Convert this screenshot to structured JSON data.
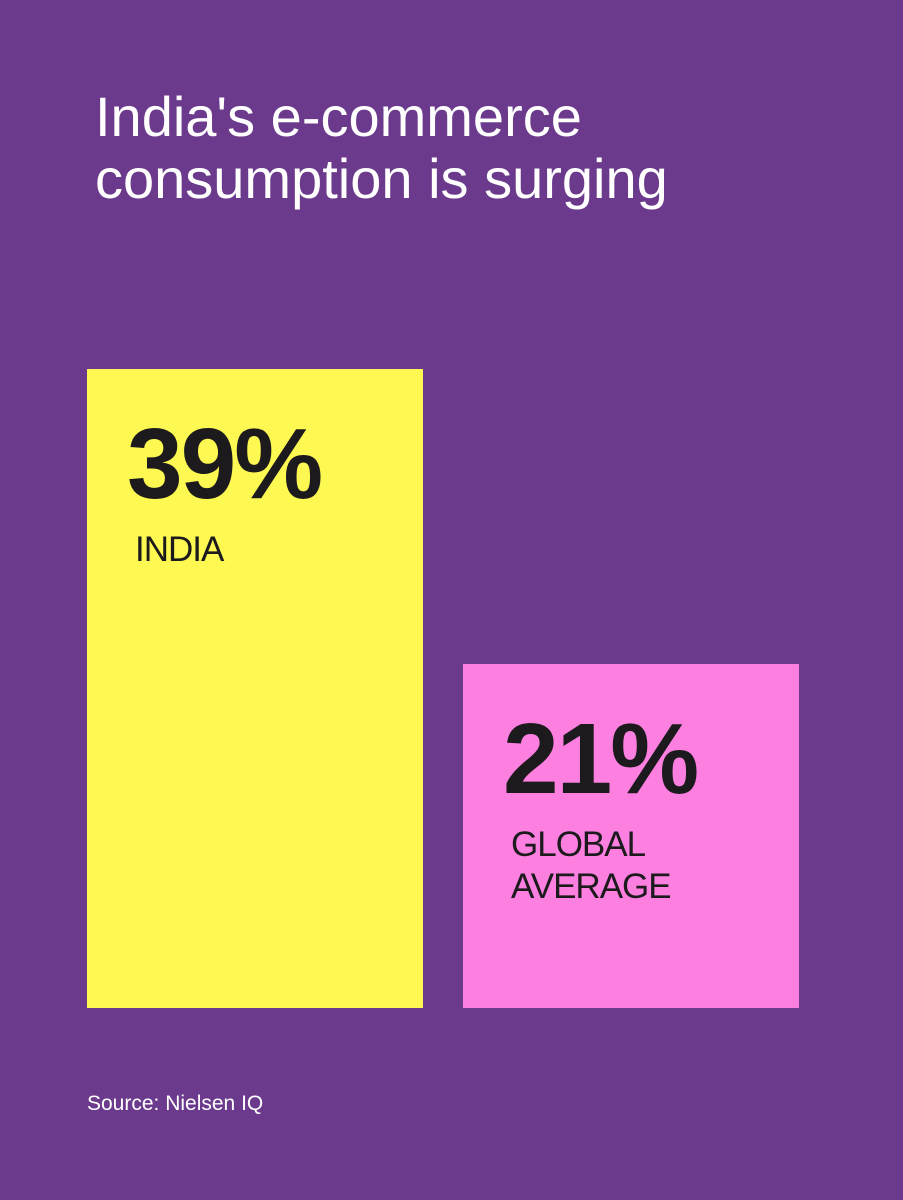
{
  "chart_data": {
    "type": "bar",
    "title": "India's e-commerce consumption is surging",
    "categories": [
      "INDIA",
      "GLOBAL AVERAGE"
    ],
    "values": [
      39,
      21
    ],
    "value_labels": [
      "39%",
      "21%"
    ],
    "colors": [
      "#fdf952",
      "#fd80e0"
    ],
    "ylim": [
      0,
      40
    ],
    "source": "Source: Nielsen IQ"
  }
}
